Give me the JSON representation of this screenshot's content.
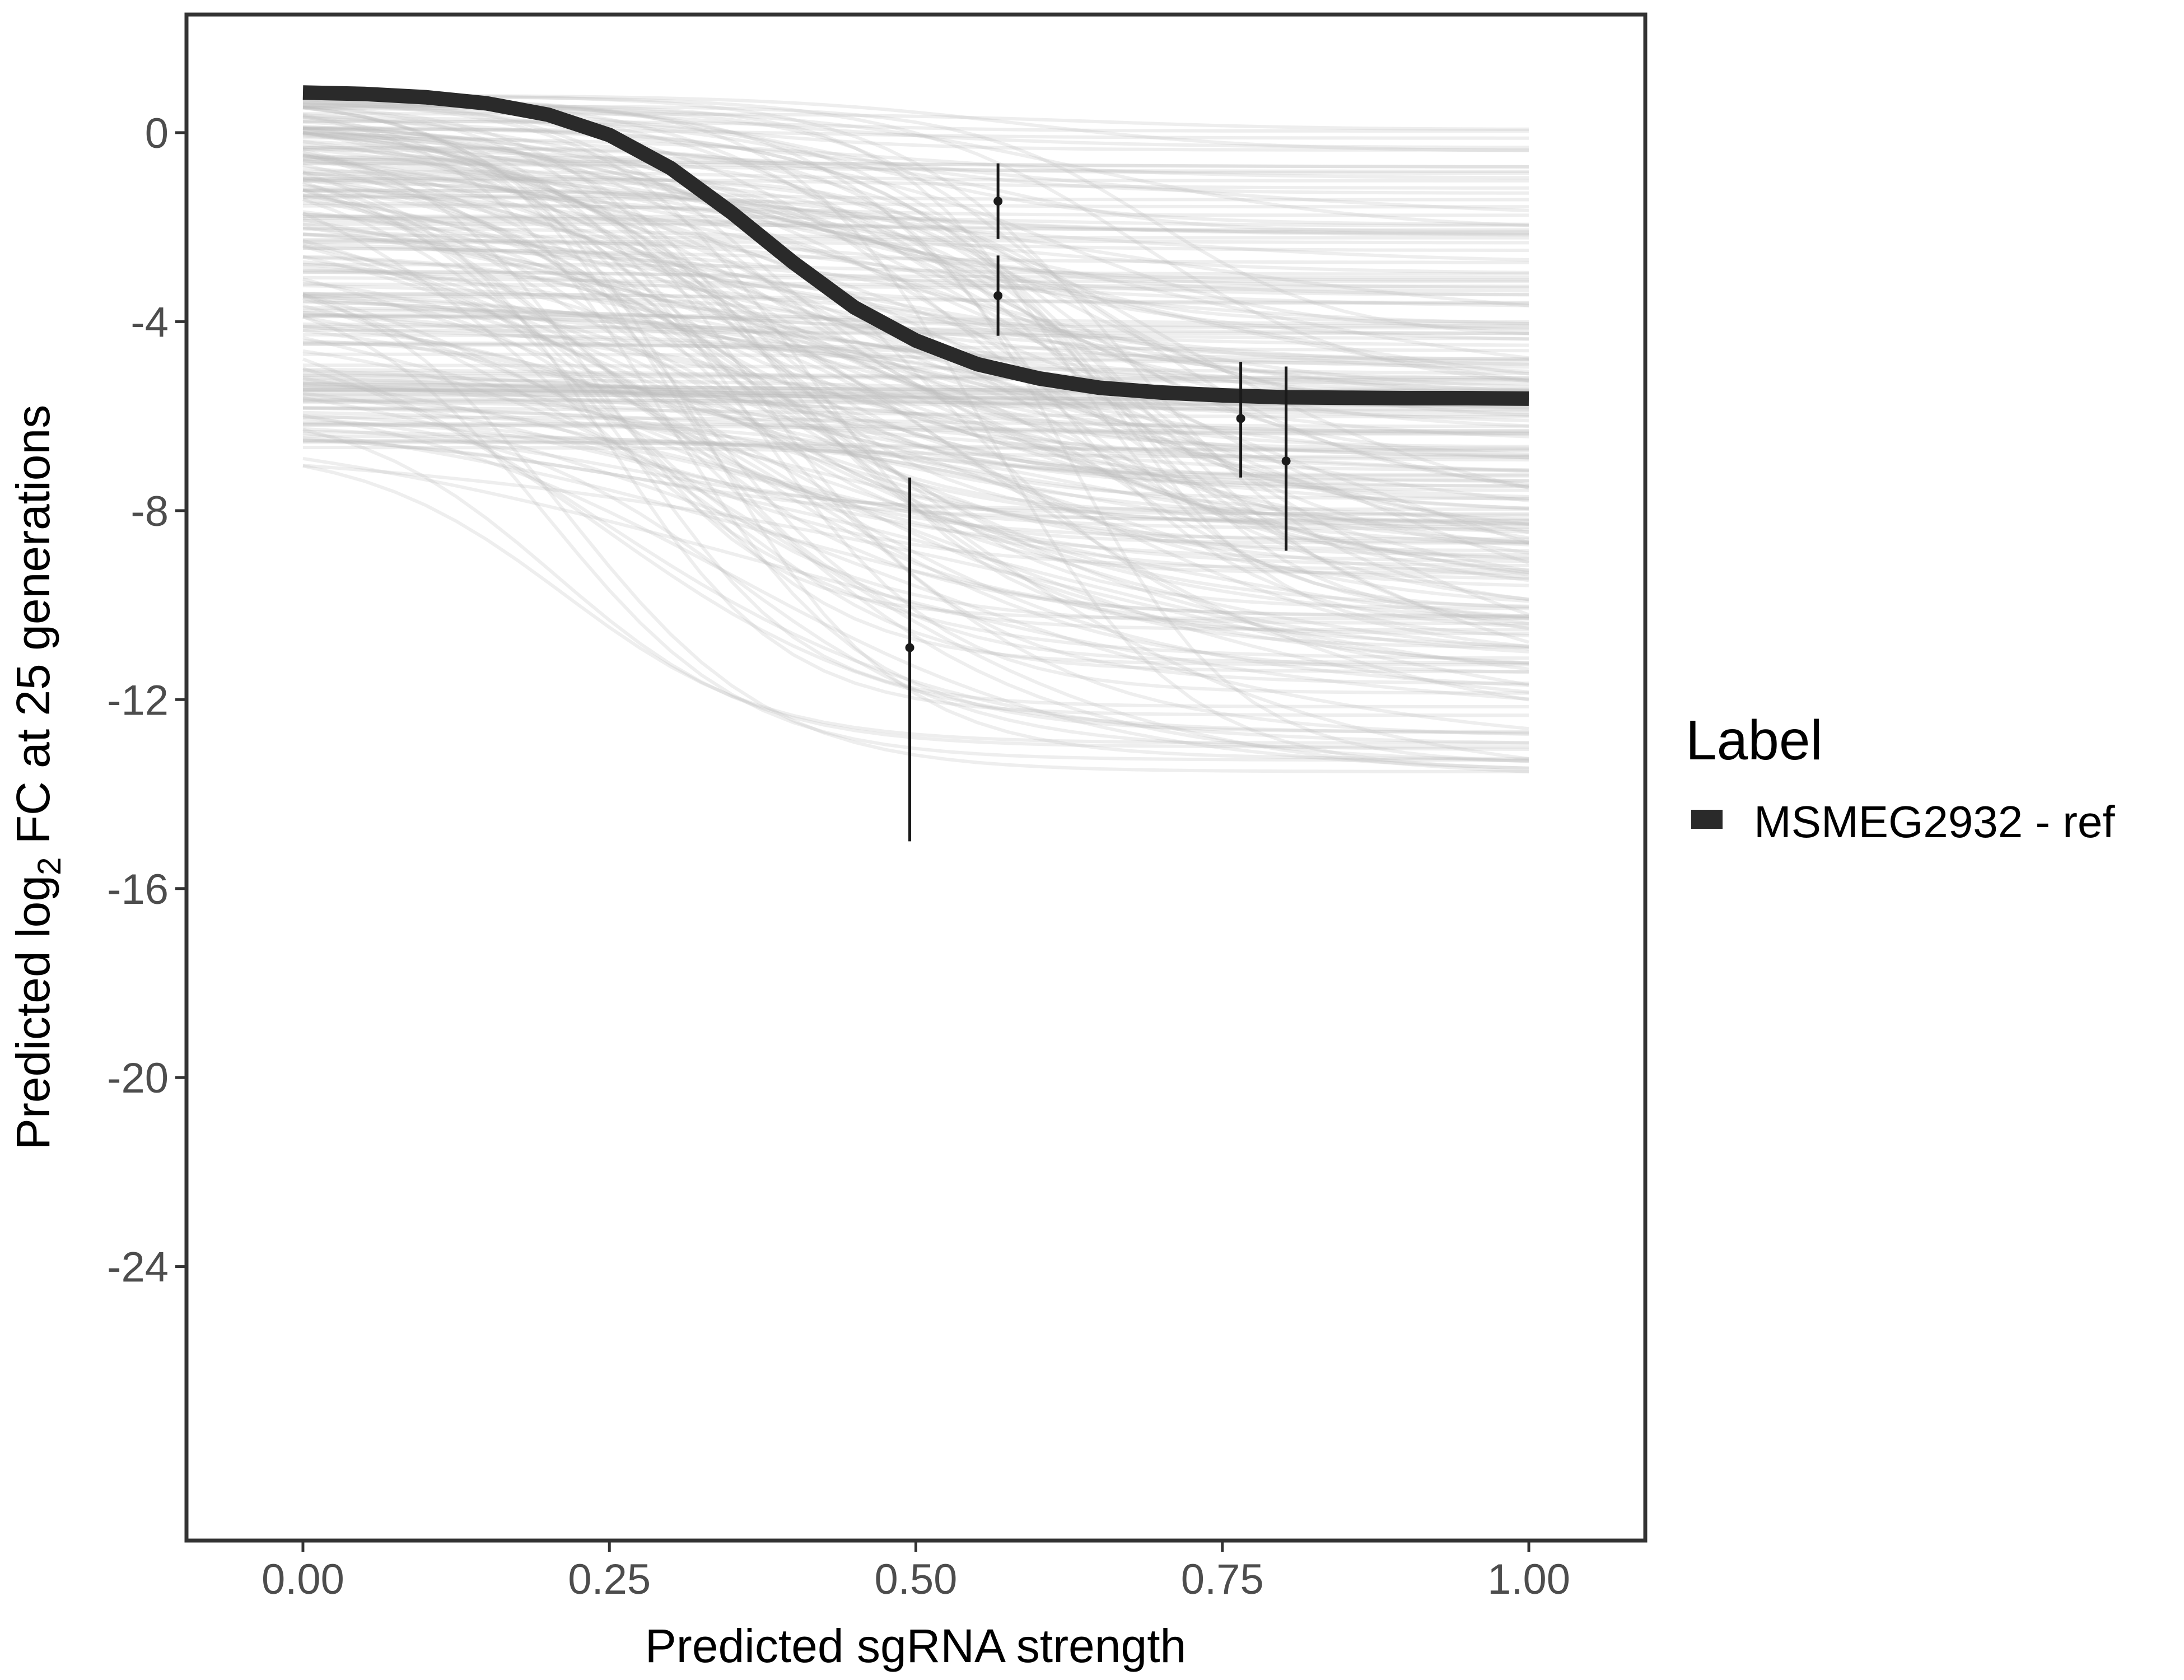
{
  "chart_data": {
    "type": "line",
    "title": "",
    "xlabel": "Predicted sgRNA strength",
    "ylabel_prefix": "Predicted  log",
    "ylabel_sub": "2",
    "ylabel_suffix": " FC at 25 generations",
    "xlim": [
      -0.095,
      1.095
    ],
    "ylim": [
      -29.8,
      2.5
    ],
    "x_ticks": [
      0,
      0.25,
      0.5,
      0.75,
      1
    ],
    "x_tick_labels": [
      "0.00",
      "0.25",
      "0.50",
      "0.75",
      "1.00"
    ],
    "y_ticks": [
      0,
      -4,
      -8,
      -12,
      -16,
      -20,
      -24
    ],
    "y_tick_labels": [
      "0",
      "-4",
      "-8",
      "-12",
      "-16",
      "-20",
      "-24"
    ],
    "grid": false,
    "legend": {
      "title": "Label",
      "position": "right",
      "entries": [
        "MSMEG2932 - ref"
      ]
    },
    "posterior_draws": {
      "count": 240,
      "color": "#bdbdbd",
      "description": "gray posterior predictive curves"
    },
    "series": [
      {
        "name": "MSMEG2932 - ref",
        "color": "#2a2a2a",
        "x": [
          0.0,
          0.05,
          0.1,
          0.15,
          0.2,
          0.25,
          0.3,
          0.35,
          0.4,
          0.45,
          0.5,
          0.55,
          0.6,
          0.65,
          0.7,
          0.75,
          0.8,
          0.85,
          0.9,
          0.95,
          1.0
        ],
        "y": [
          0.85,
          0.82,
          0.75,
          0.62,
          0.38,
          -0.05,
          -0.75,
          -1.7,
          -2.75,
          -3.7,
          -4.4,
          -4.9,
          -5.2,
          -5.4,
          -5.5,
          -5.56,
          -5.6,
          -5.61,
          -5.62,
          -5.62,
          -5.63
        ]
      }
    ],
    "observations": [
      {
        "x": 0.495,
        "y": -10.9,
        "ymin": -15.0,
        "ymax": -7.3
      },
      {
        "x": 0.567,
        "y": -1.45,
        "ymin": -2.25,
        "ymax": -0.65
      },
      {
        "x": 0.567,
        "y": -3.45,
        "ymin": -4.3,
        "ymax": -2.6
      },
      {
        "x": 0.765,
        "y": -6.05,
        "ymin": -7.3,
        "ymax": -4.85
      },
      {
        "x": 0.802,
        "y": -6.95,
        "ymin": -8.85,
        "ymax": -4.95
      }
    ]
  }
}
